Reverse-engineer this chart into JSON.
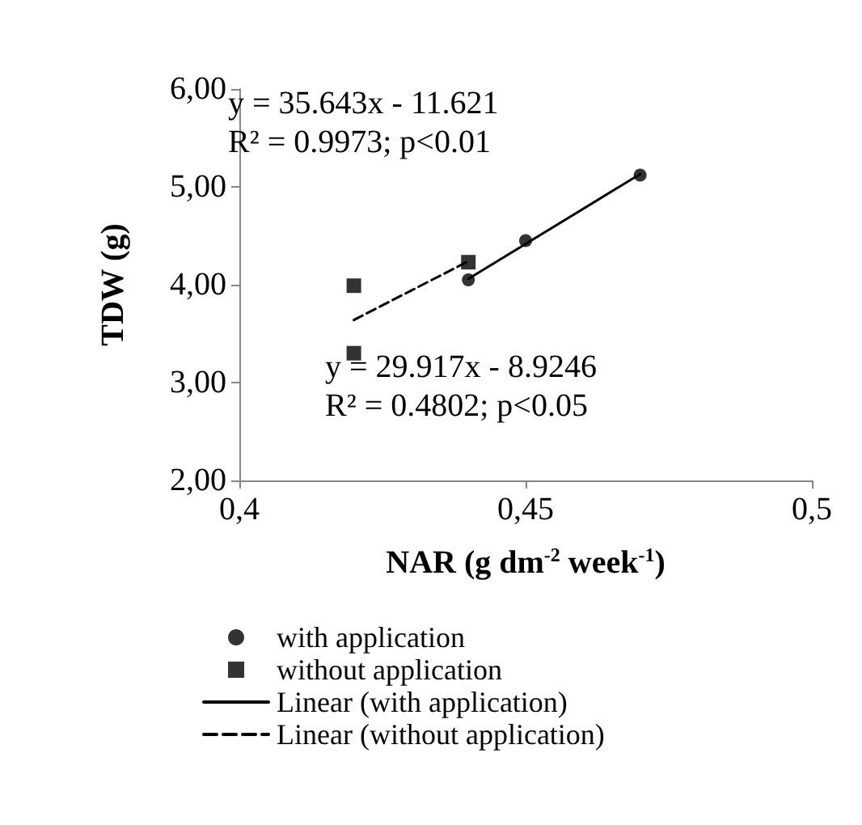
{
  "chart_data": {
    "type": "scatter",
    "xlabel": "NAR (g dm$^{-2}$ week$^{-1}$)",
    "ylabel": "TDW (g)",
    "xlim": [
      0.4,
      0.5
    ],
    "xticks": [
      {
        "value": 0.4,
        "label": "0,4"
      },
      {
        "value": 0.45,
        "label": "0,45"
      },
      {
        "value": 0.5,
        "label": "0,5"
      }
    ],
    "ylim": [
      2,
      6
    ],
    "yticks": [
      {
        "value": 2,
        "label": "2,00"
      },
      {
        "value": 3,
        "label": "3,00"
      },
      {
        "value": 4,
        "label": "4,00"
      },
      {
        "value": 5,
        "label": "5,00"
      },
      {
        "value": 6,
        "label": "6,00"
      }
    ],
    "legend": "bottom",
    "series": [
      {
        "name": "with application",
        "type": "scatter",
        "marker": "circle",
        "color": "#000000",
        "x": [
          0.44,
          0.45,
          0.47
        ],
        "values": [
          4.05,
          4.45,
          5.12
        ]
      },
      {
        "name": "without application",
        "type": "scatter",
        "marker": "square",
        "color": "#000000",
        "x": [
          0.42,
          0.42,
          0.44
        ],
        "values": [
          3.99,
          3.3,
          4.23
        ]
      },
      {
        "name": "Linear (with application)",
        "type": "line",
        "marker": "none",
        "line_style": "solid",
        "color": "#000000",
        "x": [
          0.44,
          0.47
        ],
        "values": [
          4.06,
          5.13
        ]
      },
      {
        "name": "Linear (without application)",
        "type": "line",
        "marker": "none",
        "line_style": "dashed",
        "color": "#000000",
        "x": [
          0.42,
          0.44
        ],
        "values": [
          3.64,
          4.24
        ]
      }
    ],
    "annotations": [
      "y = 35.643x - 11.621\nR² = 0.9973; p<0.01",
      "y = 29.917x - 8.9246\nR² = 0.4802; p<0.05"
    ]
  }
}
